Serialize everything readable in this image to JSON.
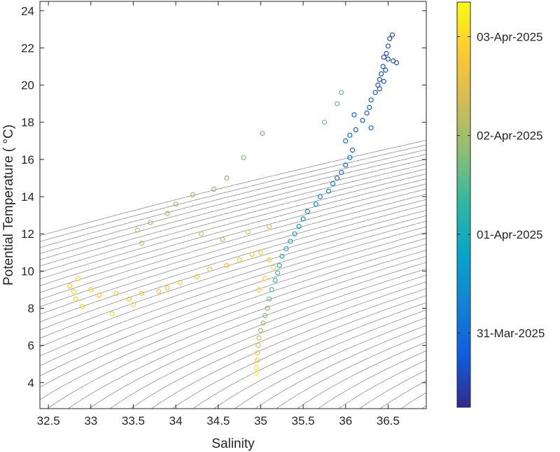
{
  "chart_data": {
    "type": "scatter",
    "title": "",
    "xlabel": "Salinity",
    "ylabel": "Potential Temperature ( °C)",
    "xlim": [
      32.4,
      36.95
    ],
    "ylim": [
      2.6,
      24.5
    ],
    "xticks": [
      {
        "value": 32.5,
        "label": "32.5"
      },
      {
        "value": 33,
        "label": "33"
      },
      {
        "value": 33.5,
        "label": "33.5"
      },
      {
        "value": 34,
        "label": "34"
      },
      {
        "value": 34.5,
        "label": "34.5"
      },
      {
        "value": 35,
        "label": "35"
      },
      {
        "value": 35.5,
        "label": "35.5"
      },
      {
        "value": 36,
        "label": "36"
      },
      {
        "value": 36.5,
        "label": "36.5"
      }
    ],
    "yticks": [
      {
        "value": 4,
        "label": "4"
      },
      {
        "value": 6,
        "label": "6"
      },
      {
        "value": 8,
        "label": "8"
      },
      {
        "value": 10,
        "label": "10"
      },
      {
        "value": 12,
        "label": "12"
      },
      {
        "value": 14,
        "label": "14"
      },
      {
        "value": 16,
        "label": "16"
      },
      {
        "value": 18,
        "label": "18"
      },
      {
        "value": 20,
        "label": "20"
      },
      {
        "value": 22,
        "label": "22"
      },
      {
        "value": 24,
        "label": "24"
      }
    ],
    "grid": false,
    "background_contours": "isopycnals (thin gray lines)",
    "highlight_contour": "one thicker gray isopycnal",
    "colormap": "parula",
    "colormap_stops": [
      "#352a87",
      "#0f5cdd",
      "#1481d6",
      "#06a4ca",
      "#2eb7a4",
      "#87bf77",
      "#d1bb59",
      "#fec832",
      "#f9fb0e"
    ],
    "point_color_variable": "time",
    "colorbar": {
      "range_days": [
        -0.75,
        3.35
      ],
      "ticks": [
        {
          "value": 0,
          "label": "31-Mar-2025"
        },
        {
          "value": 1,
          "label": "01-Apr-2025"
        },
        {
          "value": 2,
          "label": "02-Apr-2025"
        },
        {
          "value": 3,
          "label": "03-Apr-2025"
        }
      ]
    },
    "series": [
      {
        "segment": "warm-salty tail (early)",
        "points": [
          [
            36.55,
            22.7
          ],
          [
            36.52,
            22.5
          ],
          [
            36.5,
            22.1
          ],
          [
            36.48,
            21.7
          ],
          [
            36.45,
            21.5
          ],
          [
            36.5,
            21.4
          ],
          [
            36.56,
            21.3
          ],
          [
            36.6,
            21.2
          ],
          [
            36.44,
            21.0
          ],
          [
            36.47,
            20.8
          ],
          [
            36.42,
            20.6
          ],
          [
            36.4,
            20.3
          ],
          [
            36.45,
            20.2
          ],
          [
            36.38,
            20.0
          ],
          [
            36.4,
            19.8
          ],
          [
            36.35,
            19.6
          ],
          [
            36.3,
            19.2
          ],
          [
            36.28,
            18.8
          ],
          [
            36.25,
            18.5
          ],
          [
            36.2,
            18.1
          ],
          [
            36.1,
            18.4
          ],
          [
            36.12,
            17.6
          ],
          [
            36.05,
            17.3
          ],
          [
            36.0,
            17.0
          ],
          [
            36.3,
            17.7
          ],
          [
            36.08,
            16.5
          ],
          [
            36.05,
            16.1
          ],
          [
            36.0,
            15.7
          ],
          [
            35.95,
            15.3
          ],
          [
            35.9,
            15.0
          ],
          [
            35.85,
            14.7
          ]
        ],
        "time_days": [
          -0.45,
          -0.44,
          -0.43,
          -0.42,
          -0.41,
          -0.4,
          -0.39,
          -0.38,
          -0.37,
          -0.36,
          -0.35,
          -0.34,
          -0.33,
          -0.32,
          -0.31,
          -0.3,
          -0.28,
          -0.26,
          -0.24,
          -0.22,
          -0.2,
          -0.18,
          -0.16,
          -0.14,
          -0.12,
          -0.1,
          -0.05,
          0.0,
          0.05,
          0.1,
          0.15
        ]
      },
      {
        "segment": "main thermocline branch",
        "points": [
          [
            35.8,
            14.3
          ],
          [
            35.7,
            14.0
          ],
          [
            35.65,
            13.6
          ],
          [
            35.55,
            13.2
          ],
          [
            35.5,
            12.8
          ],
          [
            35.45,
            12.4
          ],
          [
            35.4,
            12.0
          ],
          [
            35.35,
            11.6
          ],
          [
            35.3,
            11.2
          ],
          [
            35.25,
            10.8
          ],
          [
            35.22,
            10.3
          ],
          [
            35.2,
            9.9
          ],
          [
            35.17,
            9.5
          ],
          [
            35.13,
            9.0
          ],
          [
            35.1,
            8.5
          ],
          [
            35.08,
            8.0
          ],
          [
            35.05,
            7.6
          ],
          [
            35.03,
            7.2
          ],
          [
            35.0,
            6.8
          ],
          [
            34.98,
            6.4
          ],
          [
            34.97,
            6.0
          ],
          [
            34.96,
            5.6
          ],
          [
            34.96,
            5.2
          ],
          [
            34.95,
            4.8
          ],
          [
            34.95,
            4.5
          ]
        ],
        "time_days": [
          0.25,
          0.35,
          0.45,
          0.55,
          0.65,
          0.75,
          0.85,
          0.95,
          1.05,
          1.15,
          1.25,
          1.35,
          1.45,
          1.55,
          1.65,
          1.75,
          1.85,
          1.95,
          2.1,
          2.3,
          2.5,
          2.7,
          2.9,
          3.1,
          3.3
        ]
      },
      {
        "segment": "upper green branch",
        "points": [
          [
            35.95,
            19.6
          ],
          [
            35.9,
            19.0
          ],
          [
            35.75,
            18.0
          ],
          [
            35.02,
            17.4
          ],
          [
            34.8,
            16.1
          ],
          [
            34.6,
            15.0
          ],
          [
            34.45,
            14.4
          ],
          [
            34.2,
            14.1
          ],
          [
            34.0,
            13.6
          ],
          [
            33.9,
            13.1
          ],
          [
            33.7,
            12.6
          ],
          [
            33.55,
            12.2
          ],
          [
            33.6,
            11.5
          ],
          [
            34.3,
            12.0
          ],
          [
            34.55,
            11.7
          ],
          [
            34.85,
            12.1
          ],
          [
            35.1,
            12.4
          ]
        ],
        "time_days": [
          1.6,
          1.65,
          1.7,
          1.75,
          1.8,
          1.85,
          1.9,
          1.95,
          2.0,
          2.05,
          2.1,
          2.15,
          2.2,
          2.25,
          2.3,
          2.35,
          2.4
        ]
      },
      {
        "segment": "cool-fresh mixed layer",
        "points": [
          [
            32.75,
            9.2
          ],
          [
            32.8,
            8.9
          ],
          [
            32.82,
            8.5
          ],
          [
            32.9,
            8.1
          ],
          [
            33.0,
            9.0
          ],
          [
            33.1,
            8.7
          ],
          [
            33.3,
            8.8
          ],
          [
            33.45,
            8.5
          ],
          [
            33.6,
            8.8
          ],
          [
            33.8,
            8.9
          ],
          [
            33.9,
            9.1
          ],
          [
            34.05,
            9.4
          ],
          [
            34.25,
            9.7
          ],
          [
            34.4,
            10.1
          ],
          [
            34.6,
            10.3
          ],
          [
            34.75,
            10.6
          ],
          [
            34.9,
            10.9
          ],
          [
            35.0,
            11.0
          ],
          [
            35.1,
            10.6
          ],
          [
            35.15,
            10.2
          ],
          [
            35.05,
            9.6
          ],
          [
            34.98,
            9.0
          ],
          [
            32.85,
            9.6
          ],
          [
            33.25,
            7.7
          ],
          [
            33.5,
            8.2
          ]
        ],
        "time_days": [
          2.95,
          2.96,
          2.97,
          2.98,
          2.9,
          2.88,
          2.85,
          2.82,
          2.78,
          2.75,
          2.72,
          2.7,
          2.68,
          2.66,
          2.7,
          2.74,
          2.78,
          2.82,
          2.86,
          2.9,
          2.94,
          2.98,
          2.99,
          3.0,
          3.01
        ]
      }
    ]
  }
}
